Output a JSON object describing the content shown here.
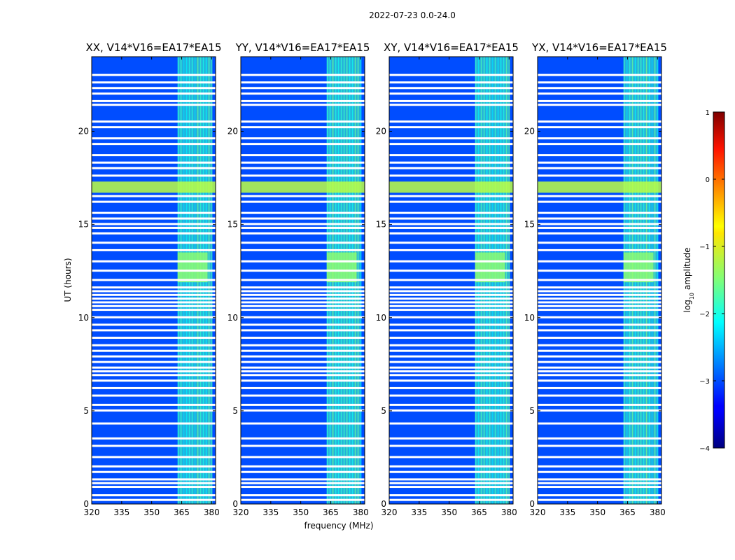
{
  "figure": {
    "title": "2022-07-23 0.0-24.0",
    "xlabel": "frequency (MHz)",
    "ylabel": "UT (hours)"
  },
  "chart_data": {
    "type": "heatmap",
    "panels": [
      {
        "title": "XX, V14*V16=EA17*EA15",
        "xlim": [
          320,
          382
        ],
        "ylim": [
          0,
          24
        ]
      },
      {
        "title": "YY, V14*V16=EA17*EA15",
        "xlim": [
          320,
          382
        ],
        "ylim": [
          0,
          24
        ]
      },
      {
        "title": "XY, V14*V16=EA17*EA15",
        "xlim": [
          320,
          382
        ],
        "ylim": [
          0,
          24
        ]
      },
      {
        "title": "YX, V14*V16=EA17*EA15",
        "xlim": [
          320,
          382
        ],
        "ylim": [
          0,
          24
        ]
      }
    ],
    "x_ticks": [
      320,
      335,
      350,
      365,
      380
    ],
    "x_tick_labels": [
      "320",
      "335",
      "350",
      "365",
      "380"
    ],
    "y_ticks": [
      0,
      5,
      10,
      15,
      20
    ],
    "y_tick_labels": [
      "0",
      "5",
      "10",
      "15",
      "20"
    ],
    "background_level": -3,
    "rfi_band_mhz": [
      363,
      380
    ],
    "rfi_band_level": -1.8,
    "bright_row_hours": [
      16.7,
      17.3
    ],
    "bright_row_level": -1.2,
    "bright_block_hours": [
      11.9,
      13.5
    ],
    "bright_block_mhz": [
      363,
      378
    ],
    "bright_block_level": -1.4,
    "flagged_hours": [
      0.2,
      0.45,
      0.9,
      1.1,
      1.3,
      1.7,
      2.0,
      2.5,
      3.1,
      3.5,
      4.3,
      5.0,
      5.3,
      5.8,
      6.2,
      6.6,
      6.9,
      7.1,
      7.3,
      7.6,
      7.9,
      8.2,
      8.5,
      8.9,
      9.3,
      9.6,
      10.0,
      10.4,
      10.6,
      10.8,
      11.0,
      11.2,
      11.4,
      11.6,
      12.0,
      12.5,
      13.0,
      13.6,
      14.0,
      14.5,
      14.8,
      15.0,
      15.3,
      15.6,
      16.2,
      16.5,
      17.6,
      18.0,
      18.3,
      18.7,
      19.3,
      19.6,
      20.2,
      20.5,
      21.4,
      21.6,
      22.0,
      22.3,
      22.6,
      23.0
    ],
    "colorbar": {
      "label": "log10 amplitude",
      "label_main": "log",
      "label_sub": "10",
      "label_rest": " amplitude",
      "range": [
        -4,
        1
      ],
      "ticks": [
        1,
        0,
        -1,
        -2,
        -3,
        -4
      ],
      "tick_labels": [
        "1",
        "0",
        "−1",
        "−2",
        "−3",
        "−4"
      ],
      "colormap": "jet"
    }
  }
}
